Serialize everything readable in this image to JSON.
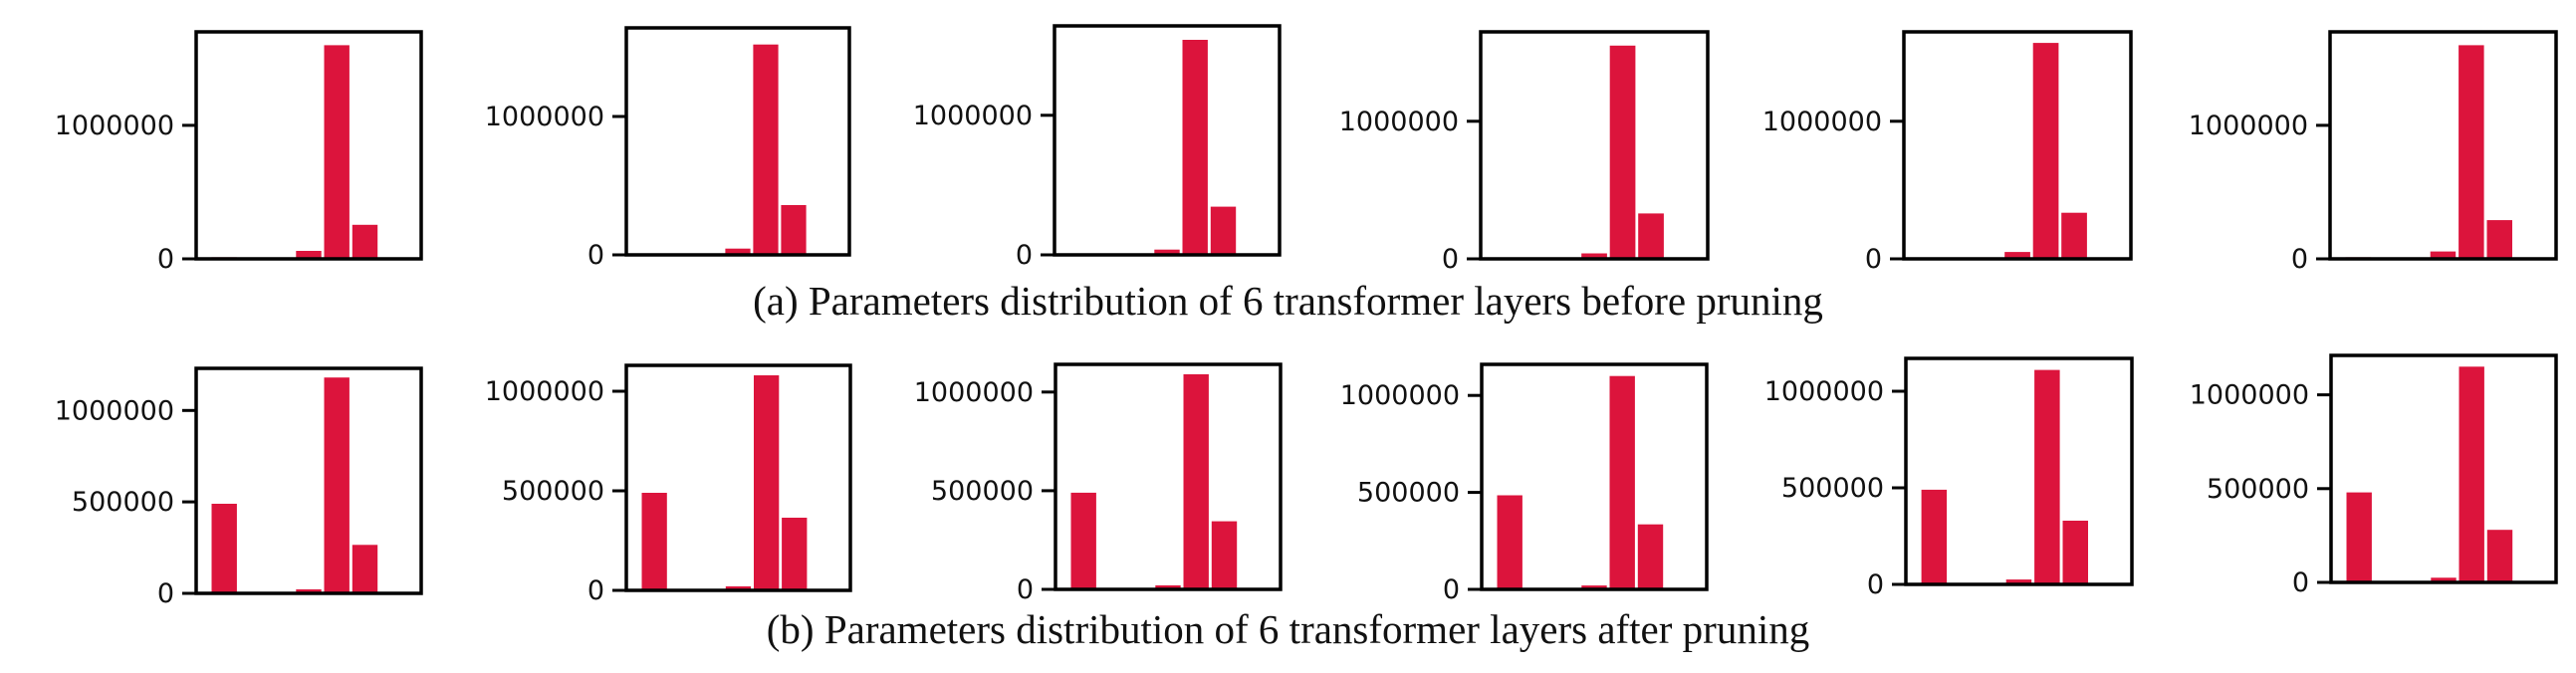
{
  "captions": {
    "a": "(a) Parameters distribution of 6 transformer layers before pruning",
    "b": "(b) Parameters distribution of 6 transformer layers after pruning"
  },
  "colors": {
    "bar": "#DC143C",
    "axis": "#000000",
    "text": "#111111"
  },
  "chart_data": [
    {
      "type": "bar",
      "row": "a",
      "panel": 1,
      "values": [
        12000,
        0,
        0,
        60000,
        1600000,
        255000
      ],
      "ylim": [
        0,
        1700000
      ],
      "yticks": [
        0,
        1000000
      ],
      "ytick_labels": [
        "0",
        "1000000"
      ]
    },
    {
      "type": "bar",
      "row": "a",
      "panel": 2,
      "values": [
        0,
        0,
        0,
        45000,
        1520000,
        360000
      ],
      "ylim": [
        0,
        1640000
      ],
      "yticks": [
        0,
        1000000
      ],
      "ytick_labels": [
        "0",
        "1000000"
      ]
    },
    {
      "type": "bar",
      "row": "a",
      "panel": 3,
      "values": [
        0,
        0,
        0,
        38000,
        1540000,
        345000
      ],
      "ylim": [
        0,
        1640000
      ],
      "yticks": [
        0,
        1000000
      ],
      "ytick_labels": [
        "0",
        "1000000"
      ]
    },
    {
      "type": "bar",
      "row": "a",
      "panel": 4,
      "values": [
        0,
        0,
        0,
        40000,
        1550000,
        330000
      ],
      "ylim": [
        0,
        1650000
      ],
      "yticks": [
        0,
        1000000
      ],
      "ytick_labels": [
        "0",
        "1000000"
      ]
    },
    {
      "type": "bar",
      "row": "a",
      "panel": 5,
      "values": [
        10000,
        0,
        0,
        50000,
        1570000,
        335000
      ],
      "ylim": [
        0,
        1650000
      ],
      "yticks": [
        0,
        1000000
      ],
      "ytick_labels": [
        "0",
        "1000000"
      ]
    },
    {
      "type": "bar",
      "row": "a",
      "panel": 6,
      "values": [
        12000,
        0,
        0,
        55000,
        1600000,
        290000
      ],
      "ylim": [
        0,
        1700000
      ],
      "yticks": [
        0,
        1000000
      ],
      "ytick_labels": [
        "0",
        "1000000"
      ]
    },
    {
      "type": "bar",
      "row": "b",
      "panel": 1,
      "values": [
        490000,
        0,
        0,
        22000,
        1180000,
        265000
      ],
      "ylim": [
        0,
        1230000
      ],
      "yticks": [
        0,
        500000,
        1000000
      ],
      "ytick_labels": [
        "0",
        "500000",
        "1000000"
      ]
    },
    {
      "type": "bar",
      "row": "b",
      "panel": 2,
      "values": [
        490000,
        0,
        0,
        20000,
        1080000,
        365000
      ],
      "ylim": [
        0,
        1130000
      ],
      "yticks": [
        0,
        500000,
        1000000
      ],
      "ytick_labels": [
        "0",
        "500000",
        "1000000"
      ]
    },
    {
      "type": "bar",
      "row": "b",
      "panel": 3,
      "values": [
        490000,
        0,
        0,
        20000,
        1090000,
        345000
      ],
      "ylim": [
        0,
        1140000
      ],
      "yticks": [
        0,
        500000,
        1000000
      ],
      "ytick_labels": [
        "0",
        "500000",
        "1000000"
      ]
    },
    {
      "type": "bar",
      "row": "b",
      "panel": 4,
      "values": [
        485000,
        0,
        0,
        20000,
        1100000,
        335000
      ],
      "ylim": [
        0,
        1160000
      ],
      "yticks": [
        0,
        500000,
        1000000
      ],
      "ytick_labels": [
        "0",
        "500000",
        "1000000"
      ]
    },
    {
      "type": "bar",
      "row": "b",
      "panel": 5,
      "values": [
        490000,
        0,
        0,
        25000,
        1110000,
        330000
      ],
      "ylim": [
        0,
        1170000
      ],
      "yticks": [
        0,
        500000,
        1000000
      ],
      "ytick_labels": [
        "0",
        "500000",
        "1000000"
      ]
    },
    {
      "type": "bar",
      "row": "b",
      "panel": 6,
      "values": [
        480000,
        0,
        0,
        25000,
        1150000,
        280000
      ],
      "ylim": [
        0,
        1210000
      ],
      "yticks": [
        0,
        500000,
        1000000
      ],
      "ytick_labels": [
        "0",
        "500000",
        "1000000"
      ]
    }
  ]
}
